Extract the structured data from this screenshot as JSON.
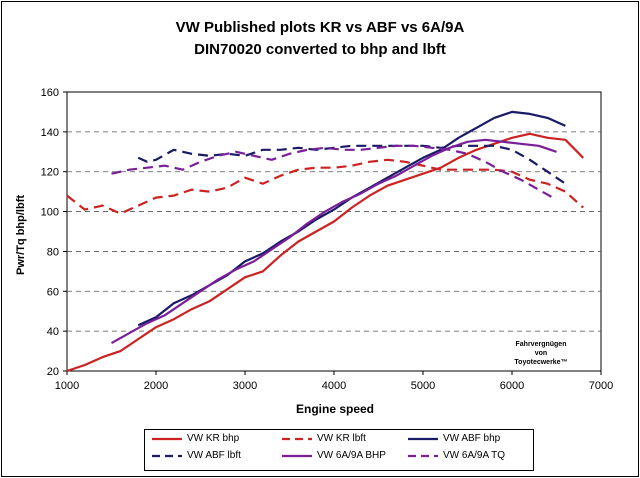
{
  "chart_data": {
    "type": "line",
    "title": "VW Published plots KR vs ABF vs 6A/9A",
    "subtitle": "DIN70020 converted to bhp and lbft",
    "xlabel": "Engine speed",
    "ylabel": "Pwr/Tq bhp/lbft",
    "xlim": [
      1000,
      7000
    ],
    "ylim": [
      20,
      160
    ],
    "x_ticks": [
      "1000",
      "2000",
      "3000",
      "4000",
      "5000",
      "6000",
      "7000"
    ],
    "y_ticks": [
      "20",
      "40",
      "60",
      "80",
      "100",
      "120",
      "140",
      "160"
    ],
    "grid": "horizontal dashed",
    "legend_placement": "bottom",
    "annotation": [
      "Fahrvergnügen",
      "von",
      "Toyotecwerke™"
    ],
    "series": [
      {
        "name": "VW KR bhp",
        "color": "#cc2222",
        "dash": "solid",
        "points": [
          [
            1000,
            20
          ],
          [
            1200,
            23
          ],
          [
            1400,
            27
          ],
          [
            1600,
            30
          ],
          [
            1800,
            36
          ],
          [
            2000,
            42
          ],
          [
            2200,
            46
          ],
          [
            2400,
            51
          ],
          [
            2600,
            55
          ],
          [
            2800,
            61
          ],
          [
            3000,
            67
          ],
          [
            3200,
            70
          ],
          [
            3400,
            78
          ],
          [
            3600,
            85
          ],
          [
            3800,
            90
          ],
          [
            4000,
            95
          ],
          [
            4200,
            102
          ],
          [
            4400,
            108
          ],
          [
            4600,
            113
          ],
          [
            4800,
            116
          ],
          [
            5000,
            119
          ],
          [
            5200,
            122
          ],
          [
            5400,
            127
          ],
          [
            5600,
            131
          ],
          [
            5800,
            134
          ],
          [
            6000,
            137
          ],
          [
            6200,
            139
          ],
          [
            6400,
            137
          ],
          [
            6600,
            136
          ],
          [
            6800,
            127
          ]
        ]
      },
      {
        "name": "VW KR lbft",
        "color": "#cc2222",
        "dash": "dashed",
        "points": [
          [
            1000,
            108
          ],
          [
            1200,
            101
          ],
          [
            1400,
            103
          ],
          [
            1600,
            99
          ],
          [
            1800,
            103
          ],
          [
            2000,
            107
          ],
          [
            2200,
            108
          ],
          [
            2400,
            111
          ],
          [
            2600,
            110
          ],
          [
            2800,
            112
          ],
          [
            3000,
            117
          ],
          [
            3200,
            114
          ],
          [
            3400,
            118
          ],
          [
            3600,
            121
          ],
          [
            3800,
            122
          ],
          [
            4000,
            122
          ],
          [
            4200,
            123
          ],
          [
            4400,
            125
          ],
          [
            4600,
            126
          ],
          [
            4800,
            125
          ],
          [
            5000,
            123
          ],
          [
            5200,
            121
          ],
          [
            5400,
            121
          ],
          [
            5600,
            121
          ],
          [
            5800,
            121
          ],
          [
            6000,
            120
          ],
          [
            6200,
            116
          ],
          [
            6400,
            114
          ],
          [
            6600,
            110
          ],
          [
            6800,
            102
          ]
        ]
      },
      {
        "name": "VW ABF bhp",
        "color": "#1a1a66",
        "dash": "solid",
        "points": [
          [
            1800,
            43
          ],
          [
            2000,
            47
          ],
          [
            2200,
            54
          ],
          [
            2400,
            58
          ],
          [
            2600,
            63
          ],
          [
            2800,
            68
          ],
          [
            3000,
            75
          ],
          [
            3200,
            79
          ],
          [
            3400,
            85
          ],
          [
            3600,
            90
          ],
          [
            3800,
            96
          ],
          [
            4000,
            101
          ],
          [
            4200,
            107
          ],
          [
            4400,
            112
          ],
          [
            4600,
            117
          ],
          [
            4800,
            122
          ],
          [
            5000,
            127
          ],
          [
            5200,
            131
          ],
          [
            5400,
            137
          ],
          [
            5600,
            142
          ],
          [
            5800,
            147
          ],
          [
            6000,
            150
          ],
          [
            6200,
            149
          ],
          [
            6400,
            147
          ],
          [
            6600,
            143
          ]
        ]
      },
      {
        "name": "VW ABF lbft",
        "color": "#1a1a66",
        "dash": "dashed",
        "points": [
          [
            1800,
            127
          ],
          [
            1900,
            125
          ],
          [
            2000,
            126
          ],
          [
            2200,
            131
          ],
          [
            2400,
            129
          ],
          [
            2600,
            128
          ],
          [
            2800,
            129
          ],
          [
            3000,
            128
          ],
          [
            3200,
            131
          ],
          [
            3400,
            131
          ],
          [
            3600,
            132
          ],
          [
            3800,
            131
          ],
          [
            4000,
            132
          ],
          [
            4200,
            133
          ],
          [
            4400,
            133
          ],
          [
            4600,
            133
          ],
          [
            4800,
            133
          ],
          [
            5000,
            133
          ],
          [
            5200,
            132
          ],
          [
            5400,
            133
          ],
          [
            5600,
            133
          ],
          [
            5800,
            133
          ],
          [
            6000,
            131
          ],
          [
            6200,
            126
          ],
          [
            6400,
            120
          ],
          [
            6600,
            114
          ]
        ]
      },
      {
        "name": "VW 6A/9A BHP",
        "color": "#7a1f9a",
        "dash": "solid",
        "points": [
          [
            1500,
            34
          ],
          [
            1700,
            39
          ],
          [
            1900,
            44
          ],
          [
            2100,
            48
          ],
          [
            2300,
            54
          ],
          [
            2500,
            60
          ],
          [
            2700,
            66
          ],
          [
            2900,
            71
          ],
          [
            3100,
            75
          ],
          [
            3300,
            81
          ],
          [
            3500,
            87
          ],
          [
            3700,
            94
          ],
          [
            3900,
            100
          ],
          [
            4100,
            105
          ],
          [
            4300,
            109
          ],
          [
            4500,
            114
          ],
          [
            4700,
            118
          ],
          [
            4900,
            123
          ],
          [
            5100,
            128
          ],
          [
            5300,
            132
          ],
          [
            5500,
            135
          ],
          [
            5700,
            136
          ],
          [
            5900,
            135
          ],
          [
            6100,
            134
          ],
          [
            6300,
            133
          ],
          [
            6500,
            130
          ]
        ]
      },
      {
        "name": "VW 6A/9A TQ",
        "color": "#7a1f9a",
        "dash": "dashed",
        "points": [
          [
            1500,
            119
          ],
          [
            1700,
            121
          ],
          [
            1900,
            122
          ],
          [
            2100,
            123
          ],
          [
            2300,
            121
          ],
          [
            2500,
            125
          ],
          [
            2700,
            128
          ],
          [
            2900,
            130
          ],
          [
            3100,
            128
          ],
          [
            3300,
            126
          ],
          [
            3500,
            129
          ],
          [
            3700,
            131
          ],
          [
            3900,
            132
          ],
          [
            4100,
            131
          ],
          [
            4300,
            131
          ],
          [
            4500,
            132
          ],
          [
            4700,
            133
          ],
          [
            4900,
            133
          ],
          [
            5100,
            132
          ],
          [
            5300,
            131
          ],
          [
            5500,
            129
          ],
          [
            5700,
            125
          ],
          [
            5900,
            120
          ],
          [
            6100,
            116
          ],
          [
            6300,
            111
          ],
          [
            6500,
            106
          ]
        ]
      }
    ]
  }
}
